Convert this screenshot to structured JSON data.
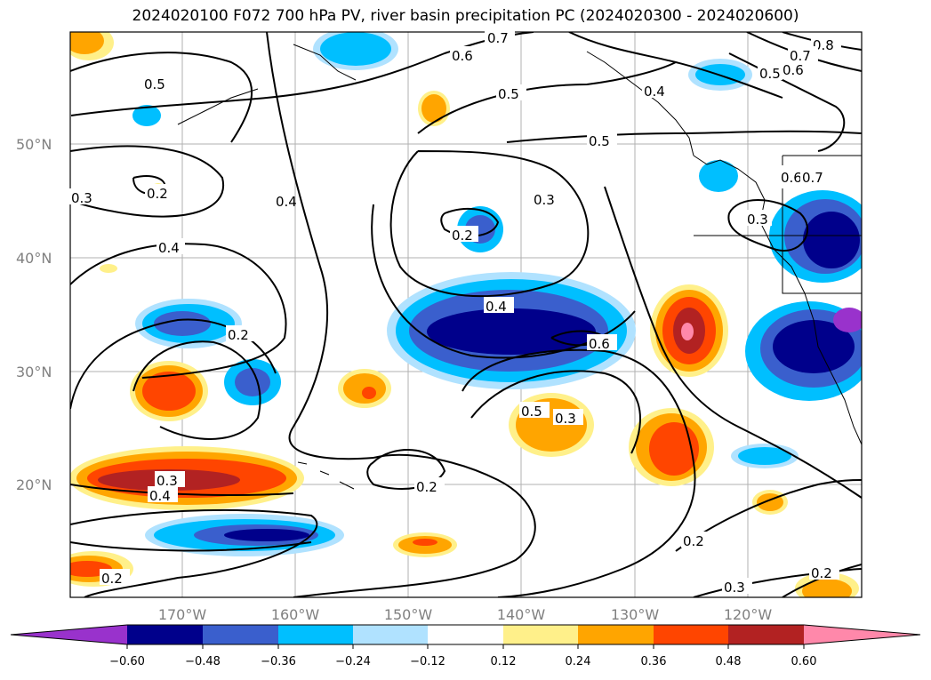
{
  "title": "2024020100 F072 700 hPa PV, river basin precipitation PC (2024020300 - 2024020600)",
  "lat_labels": [
    "50°N",
    "40°N",
    "30°N",
    "20°N"
  ],
  "lon_labels": [
    "170°W",
    "160°W",
    "150°W",
    "140°W",
    "130°W",
    "120°W"
  ],
  "colorbar": {
    "tick_labels": [
      "−0.60",
      "−0.48",
      "−0.36",
      "−0.24",
      "−0.12",
      "0.12",
      "0.24",
      "0.36",
      "0.48",
      "0.60"
    ],
    "colors": [
      "#9932cc",
      "#00008b",
      "#3a5fcd",
      "#00bfff",
      "#b0e2ff",
      "#ffffff",
      "#fff08a",
      "#ffa500",
      "#ff4500",
      "#b22222",
      "#ff88aa"
    ]
  },
  "contour_labels": [
    "0.7",
    "0.6",
    "0.5",
    "0.4",
    "0.5",
    "0.8",
    "0.7",
    "0.6",
    "0.5",
    "0.5",
    "0.3",
    "0.2",
    "0.4",
    "0.3",
    "0.2",
    "0.4",
    "0.2",
    "0.4",
    "0.6",
    "0.6",
    "0.7",
    "0.3",
    "0.5",
    "0.3",
    "0.3",
    "0.4",
    "0.2",
    "0.2",
    "0.2",
    "0.3",
    "0.2"
  ]
}
